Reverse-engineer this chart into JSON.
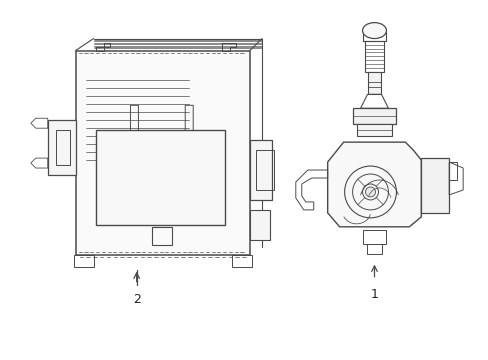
{
  "background_color": "#ffffff",
  "lc": "#4a4a4a",
  "lw": 0.7,
  "fig_w": 4.89,
  "fig_h": 3.6,
  "dpi": 100,
  "label1": "1",
  "label2": "2"
}
